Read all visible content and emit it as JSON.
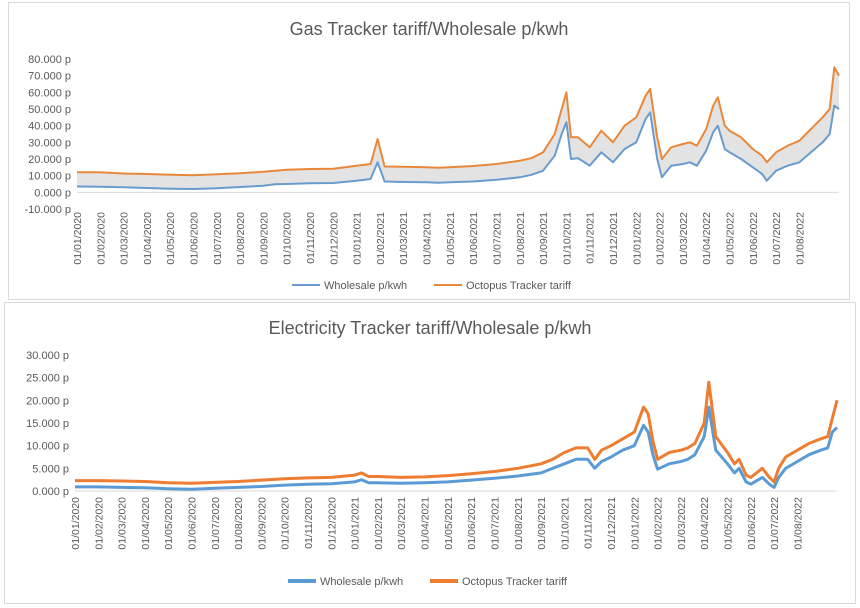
{
  "chart_data": [
    {
      "type": "area",
      "title": "Gas Tracker tariff/Wholesale p/kwh",
      "xlabel": "",
      "ylabel": "",
      "ylim": [
        -10,
        80
      ],
      "y_ticks": [
        "-10.000 p",
        "0.000 p",
        "10.000 p",
        "20.000 p",
        "30.000 p",
        "40.000 p",
        "50.000 p",
        "60.000 p",
        "70.000 p",
        "80.000 p"
      ],
      "x_ticks": [
        "01/01/2020",
        "01/02/2020",
        "01/03/2020",
        "01/04/2020",
        "01/05/2020",
        "01/06/2020",
        "01/07/2020",
        "01/08/2020",
        "01/09/2020",
        "01/10/2020",
        "01/11/2020",
        "01/12/2020",
        "01/01/2021",
        "01/02/2021",
        "01/03/2021",
        "01/04/2021",
        "01/05/2021",
        "01/06/2021",
        "01/07/2021",
        "01/08/2021",
        "01/09/2021",
        "01/10/2021",
        "01/11/2021",
        "01/12/2021",
        "01/01/2022",
        "01/02/2022",
        "01/03/2022",
        "01/04/2022",
        "01/05/2022",
        "01/06/2022",
        "01/07/2022",
        "01/08/2022"
      ],
      "legend_position": "bottom",
      "grid": false,
      "x_span_months": 32.7,
      "series": [
        {
          "name": "Wholesale p/kwh",
          "color": "#6a9bcd",
          "points": [
            [
              0,
              3.5
            ],
            [
              1,
              3.4
            ],
            [
              2,
              3.0
            ],
            [
              3,
              2.6
            ],
            [
              4,
              2.2
            ],
            [
              5,
              2.0
            ],
            [
              6,
              2.5
            ],
            [
              7,
              3.2
            ],
            [
              8,
              3.9
            ],
            [
              8.5,
              4.8
            ],
            [
              9,
              5.0
            ],
            [
              10,
              5.5
            ],
            [
              11,
              5.6
            ],
            [
              12,
              7.0
            ],
            [
              12.6,
              8.0
            ],
            [
              12.9,
              18.0
            ],
            [
              13.2,
              6.5
            ],
            [
              14,
              6.2
            ],
            [
              15,
              6.0
            ],
            [
              15.5,
              5.8
            ],
            [
              16,
              6.0
            ],
            [
              17,
              6.5
            ],
            [
              18,
              7.5
            ],
            [
              19,
              9.0
            ],
            [
              19.5,
              10.5
            ],
            [
              20,
              13.0
            ],
            [
              20.5,
              22.0
            ],
            [
              20.8,
              35.0
            ],
            [
              21.0,
              42.0
            ],
            [
              21.2,
              20.0
            ],
            [
              21.5,
              20.5
            ],
            [
              22,
              16.0
            ],
            [
              22.5,
              24.0
            ],
            [
              23,
              18.0
            ],
            [
              23.5,
              26.0
            ],
            [
              24,
              30.0
            ],
            [
              24.4,
              44.0
            ],
            [
              24.6,
              48.0
            ],
            [
              24.9,
              20.0
            ],
            [
              25.1,
              9.0
            ],
            [
              25.5,
              16.0
            ],
            [
              26,
              17.0
            ],
            [
              26.3,
              18.0
            ],
            [
              26.6,
              16.0
            ],
            [
              27,
              25.0
            ],
            [
              27.3,
              36.0
            ],
            [
              27.5,
              40.0
            ],
            [
              27.8,
              26.0
            ],
            [
              28,
              24.0
            ],
            [
              28.5,
              20.0
            ],
            [
              29,
              15.0
            ],
            [
              29.4,
              11.0
            ],
            [
              29.6,
              7.0
            ],
            [
              30,
              13.0
            ],
            [
              30.5,
              16.0
            ],
            [
              31,
              18.0
            ],
            [
              31.5,
              24.0
            ],
            [
              32,
              30.0
            ],
            [
              32.3,
              35.0
            ],
            [
              32.5,
              52.0
            ],
            [
              32.7,
              50.0
            ]
          ]
        },
        {
          "name": "Octopus Tracker tariff",
          "color": "#e9883a",
          "points": [
            [
              0,
              12.0
            ],
            [
              1,
              12.0
            ],
            [
              2,
              11.3
            ],
            [
              3,
              11.0
            ],
            [
              4,
              10.5
            ],
            [
              5,
              10.3
            ],
            [
              6,
              10.8
            ],
            [
              7,
              11.5
            ],
            [
              8,
              12.3
            ],
            [
              8.5,
              13.0
            ],
            [
              9,
              13.5
            ],
            [
              10,
              14.0
            ],
            [
              11,
              14.2
            ],
            [
              12,
              16.0
            ],
            [
              12.6,
              17.0
            ],
            [
              12.9,
              32.0
            ],
            [
              13.2,
              15.5
            ],
            [
              14,
              15.3
            ],
            [
              15,
              15.0
            ],
            [
              15.5,
              14.8
            ],
            [
              16,
              15.0
            ],
            [
              17,
              15.8
            ],
            [
              18,
              17.0
            ],
            [
              19,
              19.0
            ],
            [
              19.5,
              20.5
            ],
            [
              20,
              24.0
            ],
            [
              20.5,
              35.0
            ],
            [
              20.8,
              50.0
            ],
            [
              21.0,
              60.0
            ],
            [
              21.2,
              33.0
            ],
            [
              21.5,
              33.0
            ],
            [
              22,
              27.0
            ],
            [
              22.5,
              37.0
            ],
            [
              23,
              30.0
            ],
            [
              23.5,
              40.0
            ],
            [
              24,
              45.0
            ],
            [
              24.4,
              58.0
            ],
            [
              24.6,
              62.0
            ],
            [
              24.9,
              33.0
            ],
            [
              25.1,
              20.0
            ],
            [
              25.5,
              27.0
            ],
            [
              26,
              29.0
            ],
            [
              26.3,
              30.0
            ],
            [
              26.6,
              28.0
            ],
            [
              27,
              38.0
            ],
            [
              27.3,
              52.0
            ],
            [
              27.5,
              57.0
            ],
            [
              27.8,
              40.0
            ],
            [
              28,
              37.0
            ],
            [
              28.5,
              33.0
            ],
            [
              29,
              26.0
            ],
            [
              29.4,
              22.0
            ],
            [
              29.6,
              18.0
            ],
            [
              30,
              24.0
            ],
            [
              30.5,
              28.0
            ],
            [
              31,
              31.0
            ],
            [
              31.5,
              38.0
            ],
            [
              32,
              45.0
            ],
            [
              32.3,
              50.0
            ],
            [
              32.5,
              75.0
            ],
            [
              32.7,
              70.0
            ]
          ]
        }
      ]
    },
    {
      "type": "line",
      "title": "Electricity Tracker tariff/Wholesale p/kwh",
      "xlabel": "",
      "ylabel": "",
      "ylim": [
        0,
        30
      ],
      "y_ticks": [
        "0.000 p",
        "5.000 p",
        "10.000 p",
        "15.000 p",
        "20.000 p",
        "25.000 p",
        "30.000 p"
      ],
      "x_ticks": [
        "01/01/2020",
        "01/02/2020",
        "01/03/2020",
        "01/04/2020",
        "01/05/2020",
        "01/06/2020",
        "01/07/2020",
        "01/08/2020",
        "01/09/2020",
        "01/10/2020",
        "01/11/2020",
        "01/12/2020",
        "01/01/2021",
        "01/02/2021",
        "01/03/2021",
        "01/04/2021",
        "01/05/2021",
        "01/06/2021",
        "01/07/2021",
        "01/08/2021",
        "01/09/2021",
        "01/10/2021",
        "01/11/2021",
        "01/12/2021",
        "01/01/2022",
        "01/02/2022",
        "01/03/2022",
        "01/04/2022",
        "01/05/2022",
        "01/06/2022",
        "01/07/2022",
        "01/08/2022"
      ],
      "legend_position": "bottom",
      "grid": false,
      "x_span_months": 32.7,
      "series": [
        {
          "name": "Wholesale p/kwh",
          "color": "#5b9bd5",
          "points": [
            [
              0,
              0.9
            ],
            [
              1,
              0.9
            ],
            [
              2,
              0.8
            ],
            [
              3,
              0.7
            ],
            [
              4,
              0.5
            ],
            [
              5,
              0.4
            ],
            [
              6,
              0.6
            ],
            [
              7,
              0.8
            ],
            [
              8,
              1.0
            ],
            [
              9,
              1.3
            ],
            [
              10,
              1.5
            ],
            [
              11,
              1.6
            ],
            [
              12,
              2.0
            ],
            [
              12.3,
              2.5
            ],
            [
              12.6,
              1.8
            ],
            [
              13,
              1.8
            ],
            [
              14,
              1.7
            ],
            [
              15,
              1.8
            ],
            [
              16,
              2.0
            ],
            [
              17,
              2.4
            ],
            [
              18,
              2.8
            ],
            [
              19,
              3.3
            ],
            [
              20,
              4.0
            ],
            [
              20.5,
              5.0
            ],
            [
              21,
              6.0
            ],
            [
              21.5,
              7.0
            ],
            [
              22,
              7.0
            ],
            [
              22.3,
              5.0
            ],
            [
              22.6,
              6.5
            ],
            [
              23,
              7.5
            ],
            [
              23.5,
              9.0
            ],
            [
              24,
              10.0
            ],
            [
              24.4,
              14.5
            ],
            [
              24.6,
              13.0
            ],
            [
              24.8,
              8.0
            ],
            [
              25,
              4.8
            ],
            [
              25.5,
              6.0
            ],
            [
              26,
              6.5
            ],
            [
              26.3,
              7.0
            ],
            [
              26.6,
              8.0
            ],
            [
              27,
              12.0
            ],
            [
              27.2,
              18.5
            ],
            [
              27.5,
              9.0
            ],
            [
              28,
              6.0
            ],
            [
              28.3,
              4.0
            ],
            [
              28.5,
              5.0
            ],
            [
              28.8,
              2.0
            ],
            [
              29,
              1.5
            ],
            [
              29.5,
              3.0
            ],
            [
              29.8,
              1.5
            ],
            [
              30,
              0.8
            ],
            [
              30.2,
              3.0
            ],
            [
              30.5,
              5.0
            ],
            [
              31,
              6.5
            ],
            [
              31.5,
              8.0
            ],
            [
              32,
              9.0
            ],
            [
              32.3,
              9.5
            ],
            [
              32.5,
              13.0
            ],
            [
              32.7,
              14.0
            ]
          ]
        },
        {
          "name": "Octopus Tracker tariff",
          "color": "#ed7d31",
          "points": [
            [
              0,
              2.3
            ],
            [
              1,
              2.3
            ],
            [
              2,
              2.2
            ],
            [
              3,
              2.1
            ],
            [
              4,
              1.8
            ],
            [
              5,
              1.7
            ],
            [
              6,
              1.9
            ],
            [
              7,
              2.1
            ],
            [
              8,
              2.4
            ],
            [
              9,
              2.7
            ],
            [
              10,
              2.9
            ],
            [
              11,
              3.0
            ],
            [
              12,
              3.5
            ],
            [
              12.3,
              4.0
            ],
            [
              12.6,
              3.2
            ],
            [
              13,
              3.2
            ],
            [
              14,
              3.0
            ],
            [
              15,
              3.1
            ],
            [
              16,
              3.4
            ],
            [
              17,
              3.8
            ],
            [
              18,
              4.3
            ],
            [
              19,
              5.0
            ],
            [
              20,
              6.0
            ],
            [
              20.5,
              7.0
            ],
            [
              21,
              8.5
            ],
            [
              21.5,
              9.5
            ],
            [
              22,
              9.5
            ],
            [
              22.3,
              7.0
            ],
            [
              22.6,
              9.0
            ],
            [
              23,
              10.0
            ],
            [
              23.5,
              11.5
            ],
            [
              24,
              13.0
            ],
            [
              24.4,
              18.5
            ],
            [
              24.6,
              17.0
            ],
            [
              24.8,
              11.0
            ],
            [
              25,
              7.0
            ],
            [
              25.5,
              8.5
            ],
            [
              26,
              9.0
            ],
            [
              26.3,
              9.5
            ],
            [
              26.6,
              10.5
            ],
            [
              27,
              15.0
            ],
            [
              27.2,
              24.0
            ],
            [
              27.5,
              12.0
            ],
            [
              28,
              8.5
            ],
            [
              28.3,
              6.0
            ],
            [
              28.5,
              7.0
            ],
            [
              28.8,
              3.5
            ],
            [
              29,
              3.0
            ],
            [
              29.5,
              5.0
            ],
            [
              29.8,
              3.0
            ],
            [
              30,
              2.0
            ],
            [
              30.2,
              5.0
            ],
            [
              30.5,
              7.5
            ],
            [
              31,
              9.0
            ],
            [
              31.5,
              10.5
            ],
            [
              32,
              11.5
            ],
            [
              32.3,
              12.0
            ],
            [
              32.5,
              16.0
            ],
            [
              32.7,
              20.0
            ]
          ]
        }
      ]
    }
  ]
}
